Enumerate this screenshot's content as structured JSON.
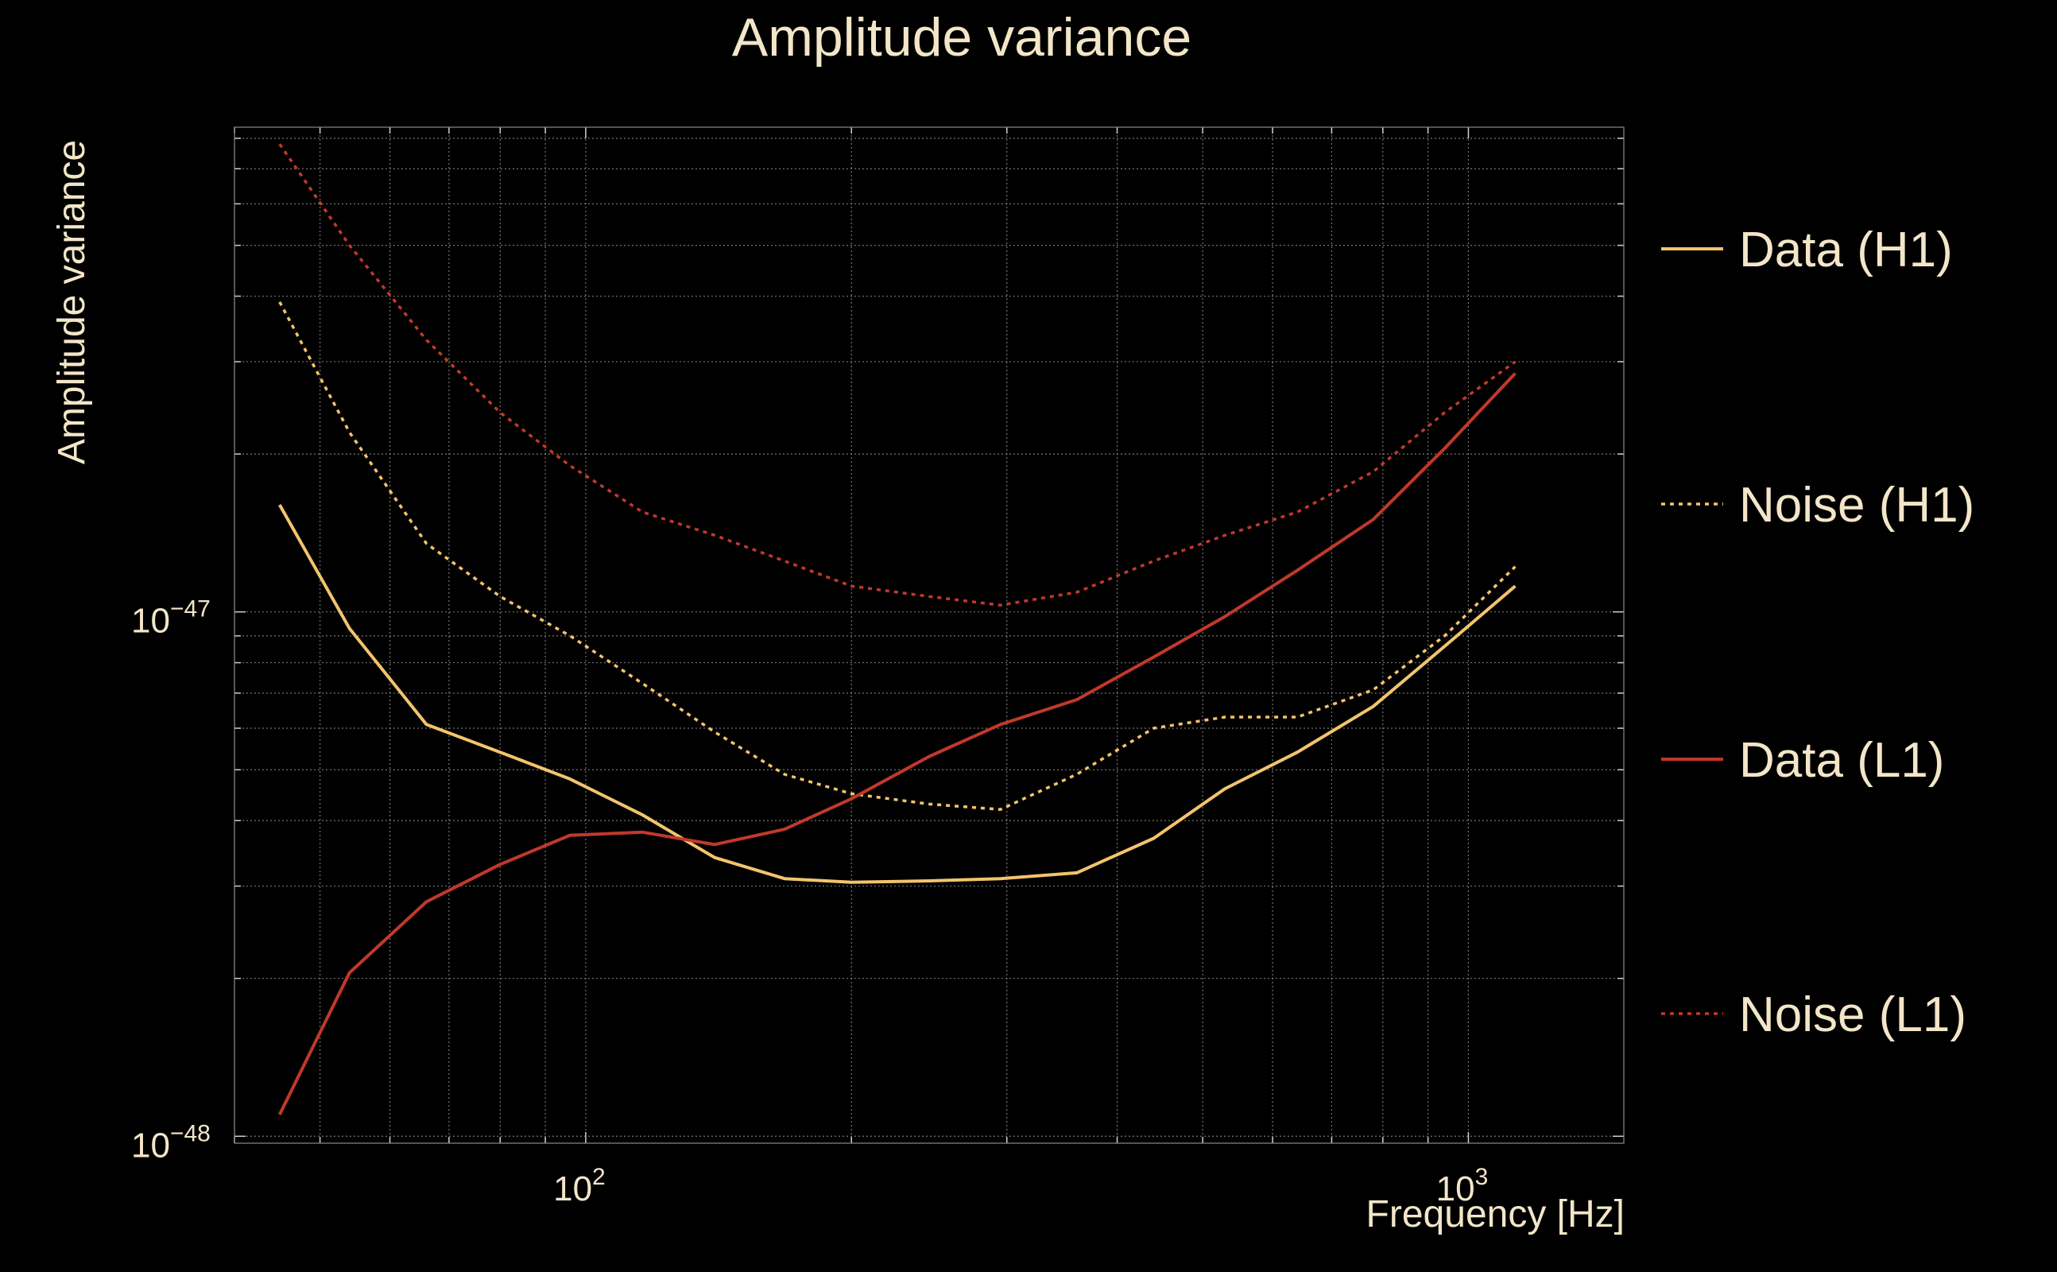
{
  "chart_data": {
    "type": "line",
    "title": "Amplitude variance",
    "xlabel": "Frequency [Hz]",
    "ylabel": "Amplitude variance",
    "xscale": "log",
    "yscale": "log",
    "xlim": [
      40,
      1500
    ],
    "ylim": [
      9.7e-49,
      8.4e-47
    ],
    "grid": true,
    "legend_position": "right",
    "x_ticks": [
      {
        "value": 100,
        "base": "10",
        "exp": "2"
      },
      {
        "value": 1000,
        "base": "10",
        "exp": "3"
      }
    ],
    "y_ticks": [
      {
        "value": 1e-47,
        "base": "10",
        "exp": "−47"
      },
      {
        "value": 1e-48,
        "base": "10",
        "exp": "−48"
      }
    ],
    "x": [
      45,
      54,
      66,
      80,
      96,
      116,
      140,
      168,
      200,
      245,
      295,
      360,
      440,
      530,
      640,
      780,
      940,
      1130
    ],
    "series": [
      {
        "name": "Data (H1)",
        "color": "#f3c46d",
        "dash": "solid",
        "values": [
          1.6e-47,
          9.3e-48,
          6.1e-48,
          5.4e-48,
          4.8e-48,
          4.1e-48,
          3.4e-48,
          3.1e-48,
          3.05e-48,
          3.07e-48,
          3.1e-48,
          3.18e-48,
          3.7e-48,
          4.6e-48,
          5.4e-48,
          6.6e-48,
          8.6e-48,
          1.12e-47
        ]
      },
      {
        "name": "Noise (H1)",
        "color": "#f3c46d",
        "dash": "dotted",
        "values": [
          3.9e-47,
          2.2e-47,
          1.35e-47,
          1.07e-47,
          9e-48,
          7.3e-48,
          5.9e-48,
          4.9e-48,
          4.5e-48,
          4.3e-48,
          4.2e-48,
          4.9e-48,
          6e-48,
          6.3e-48,
          6.3e-48,
          7.1e-48,
          9e-48,
          1.22e-47
        ]
      },
      {
        "name": "Data (L1)",
        "color": "#c0392b",
        "dash": "solid",
        "values": [
          1.1e-48,
          2.05e-48,
          2.8e-48,
          3.3e-48,
          3.75e-48,
          3.8e-48,
          3.6e-48,
          3.85e-48,
          4.4e-48,
          5.3e-48,
          6.1e-48,
          6.8e-48,
          8.2e-48,
          9.8e-48,
          1.2e-47,
          1.5e-47,
          2.05e-47,
          2.85e-47
        ]
      },
      {
        "name": "Noise (L1)",
        "color": "#c0392b",
        "dash": "dotted",
        "values": [
          7.8e-47,
          5e-47,
          3.3e-47,
          2.4e-47,
          1.9e-47,
          1.55e-47,
          1.4e-47,
          1.25e-47,
          1.12e-47,
          1.07e-47,
          1.03e-47,
          1.09e-47,
          1.25e-47,
          1.4e-47,
          1.55e-47,
          1.85e-47,
          2.4e-47,
          3e-47
        ]
      }
    ]
  }
}
